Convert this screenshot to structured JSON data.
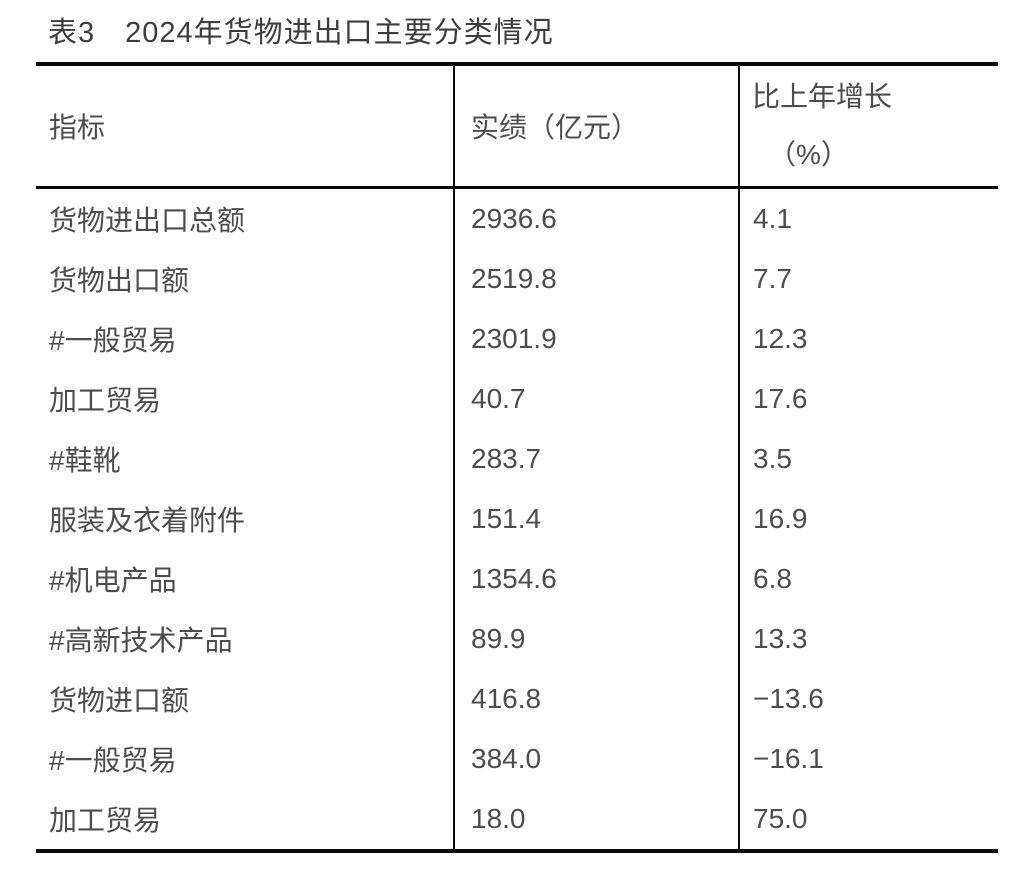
{
  "title": "表3　2024年货物进出口主要分类情况",
  "table": {
    "headers": {
      "indicator": "指标",
      "value": "实绩（亿元）",
      "growth_line1": "比上年增长",
      "growth_line2": "（%）"
    },
    "rows": [
      {
        "indicator": "货物进出口总额",
        "value": "2936.6",
        "growth": "4.1"
      },
      {
        "indicator": "货物出口额",
        "value": "2519.8",
        "growth": "7.7"
      },
      {
        "indicator": "#一般贸易",
        "value": "2301.9",
        "growth": "12.3"
      },
      {
        "indicator": "加工贸易",
        "value": "40.7",
        "growth": "17.6"
      },
      {
        "indicator": "#鞋靴",
        "value": "283.7",
        "growth": "3.5"
      },
      {
        "indicator": "服装及衣着附件",
        "value": "151.4",
        "growth": "16.9"
      },
      {
        "indicator": "#机电产品",
        "value": "1354.6",
        "growth": "6.8"
      },
      {
        "indicator": "#高新技术产品",
        "value": "89.9",
        "growth": "13.3"
      },
      {
        "indicator": "货物进口额",
        "value": "416.8",
        "growth": "−13.6"
      },
      {
        "indicator": "#一般贸易",
        "value": "384.0",
        "growth": "−16.1"
      },
      {
        "indicator": "加工贸易",
        "value": "18.0",
        "growth": "75.0"
      }
    ]
  },
  "colors": {
    "border": "#0a0a0a",
    "title_text": "#3d3d3d",
    "body_text": "#4d4d4d",
    "background": "#ffffff"
  },
  "chart_data": {
    "type": "table",
    "title": "表3　2024年货物进出口主要分类情况",
    "columns": [
      "指标",
      "实绩（亿元）",
      "比上年增长（%）"
    ],
    "rows": [
      [
        "货物进出口总额",
        2936.6,
        4.1
      ],
      [
        "货物出口额",
        2519.8,
        7.7
      ],
      [
        "#一般贸易",
        2301.9,
        12.3
      ],
      [
        "加工贸易",
        40.7,
        17.6
      ],
      [
        "#鞋靴",
        283.7,
        3.5
      ],
      [
        "服装及衣着附件",
        151.4,
        16.9
      ],
      [
        "#机电产品",
        1354.6,
        6.8
      ],
      [
        "#高新技术产品",
        89.9,
        13.3
      ],
      [
        "货物进口额",
        416.8,
        -13.6
      ],
      [
        "#一般贸易",
        384.0,
        -16.1
      ],
      [
        "加工贸易",
        18.0,
        75.0
      ]
    ]
  }
}
